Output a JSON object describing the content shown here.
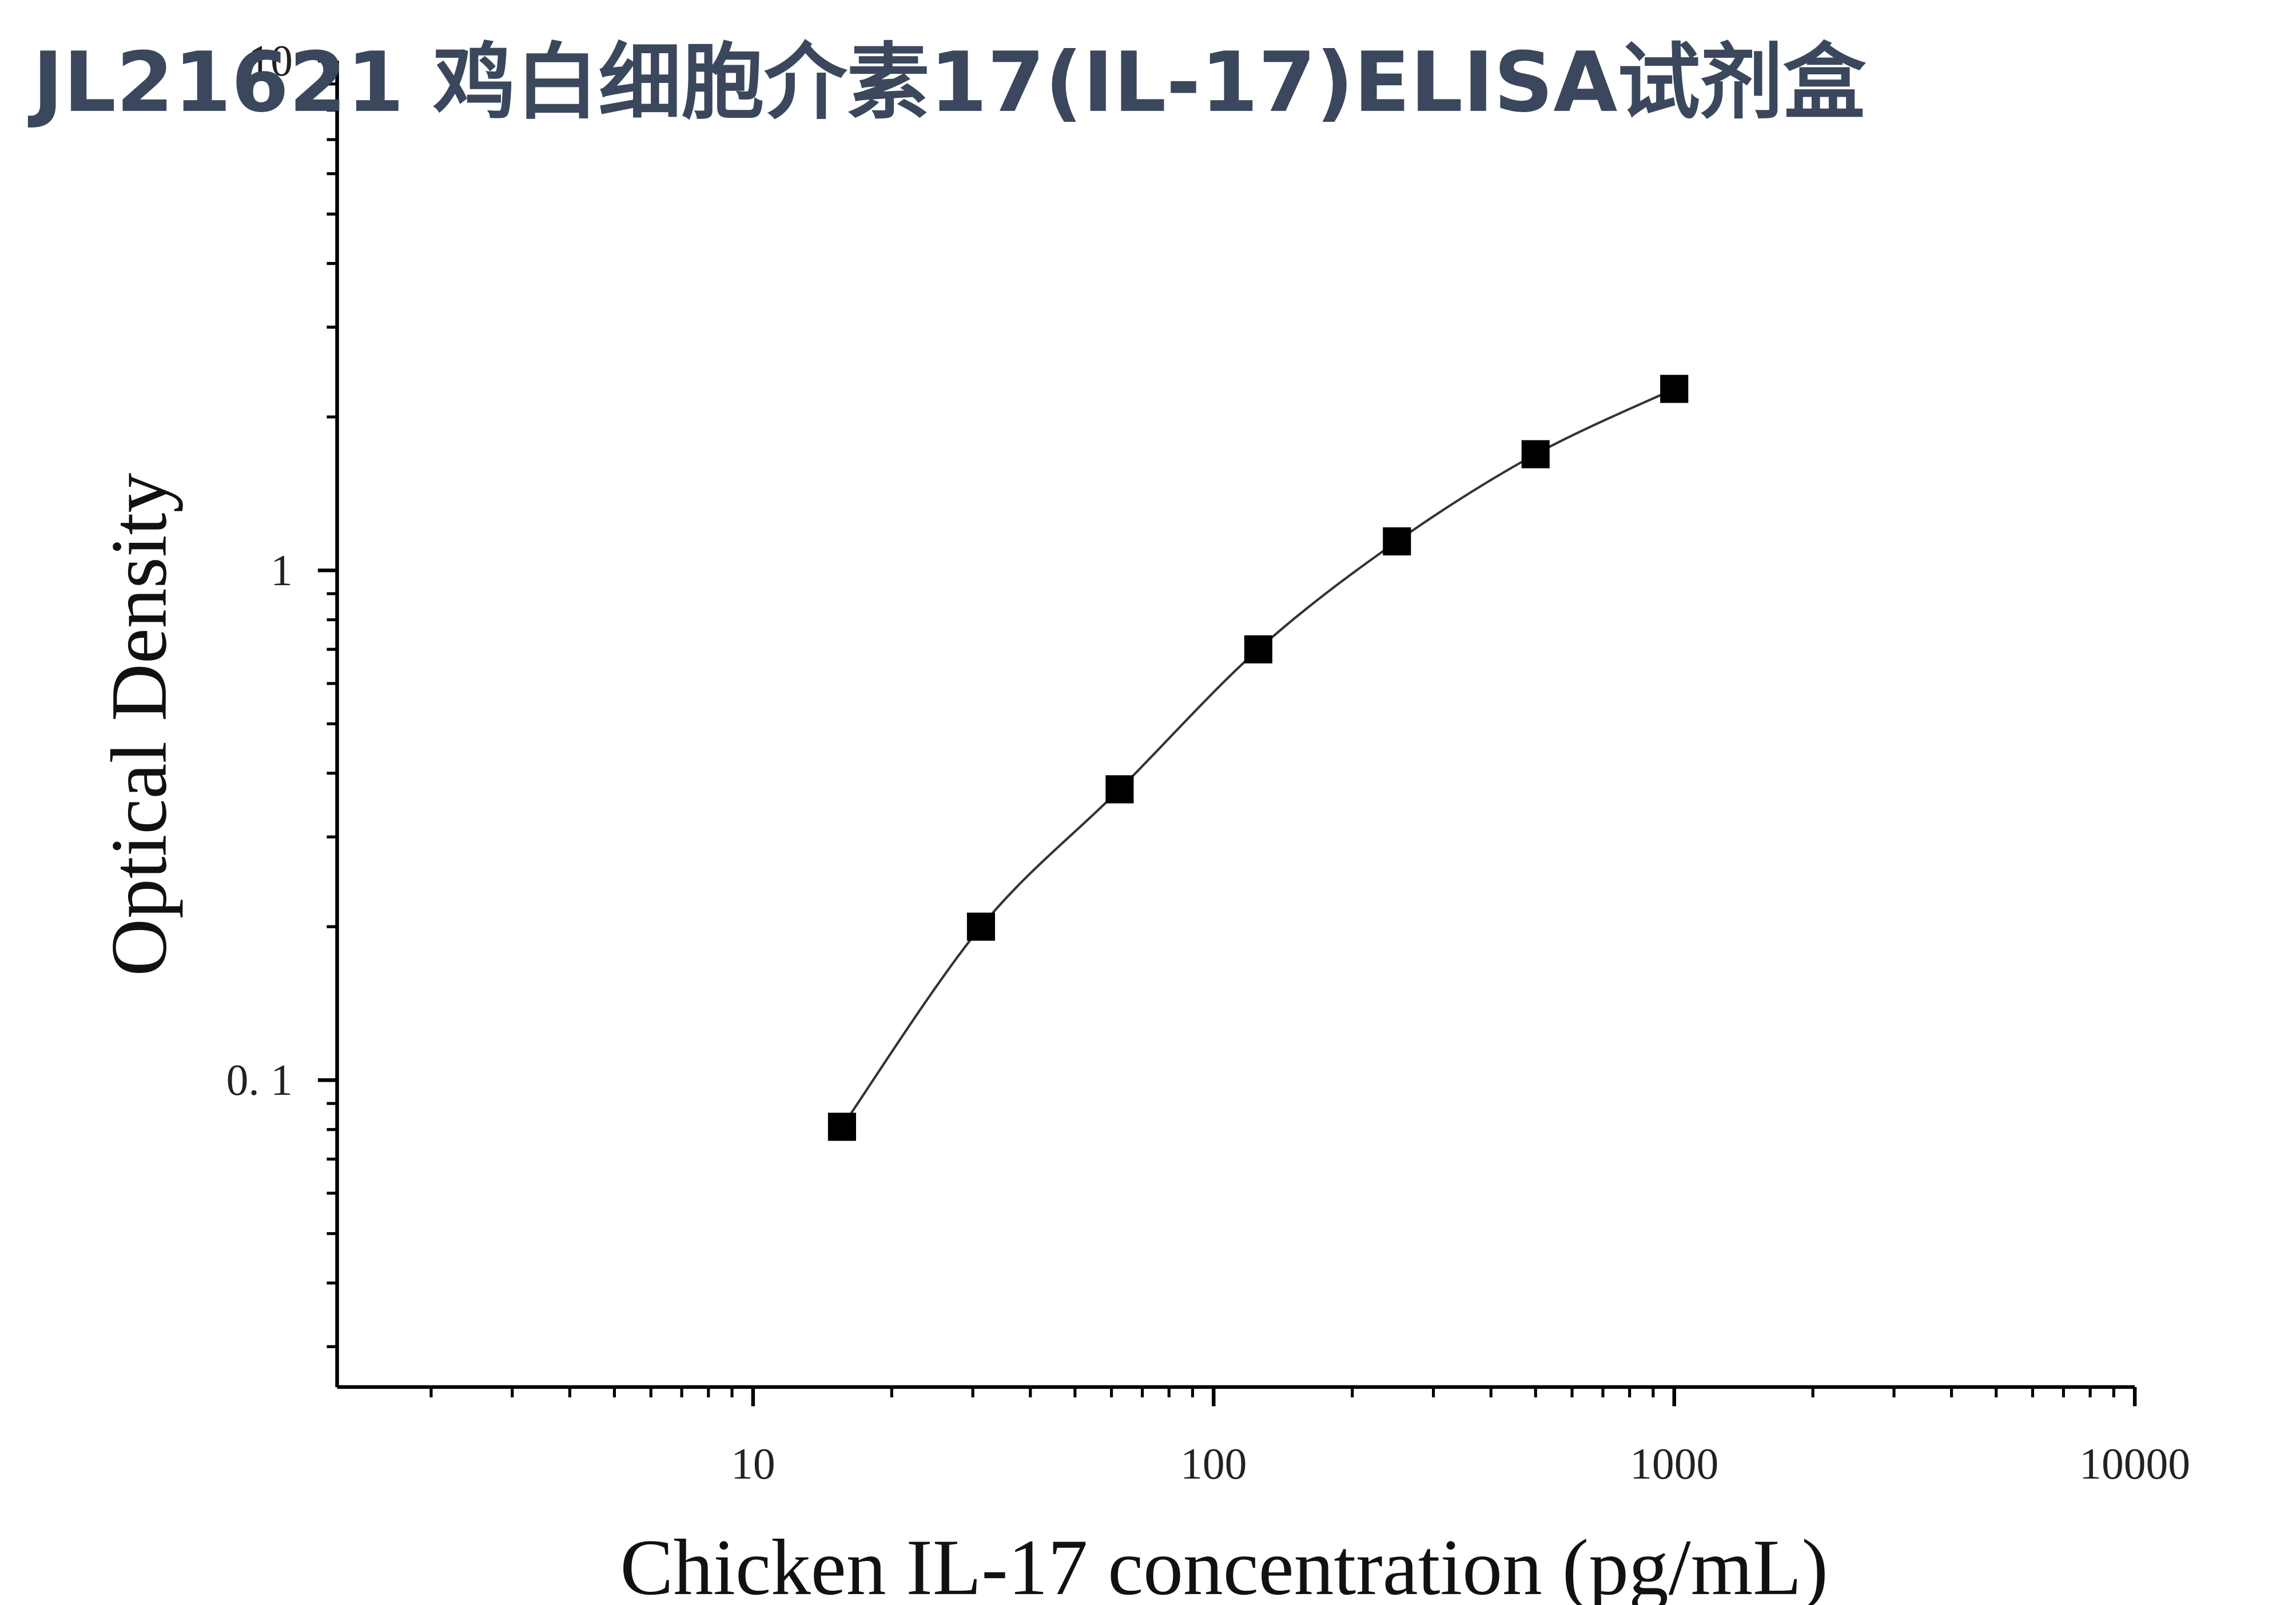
{
  "chart_data": {
    "type": "scatter",
    "title": "JL21621 鸡白细胞介素17(IL-17)ELISA试剂盒",
    "x_label": "Chicken IL-17 concentration (pg/mL)",
    "y_label": "Optical Density",
    "x_scale": "log",
    "y_scale": "log",
    "xlim": [
      1.25,
      10000
    ],
    "ylim": [
      0.025,
      10
    ],
    "xticks": [
      10,
      100,
      1000,
      10000
    ],
    "yticks": [
      {
        "value": 0.1,
        "label": "0. 1"
      },
      1,
      10
    ],
    "color": "#000000",
    "fit_curve": true,
    "x": [
      15.6,
      31.25,
      62.5,
      125,
      250,
      500,
      1000
    ],
    "values": [
      0.081,
      0.2,
      0.372,
      0.7,
      1.14,
      1.69,
      2.27
    ]
  }
}
